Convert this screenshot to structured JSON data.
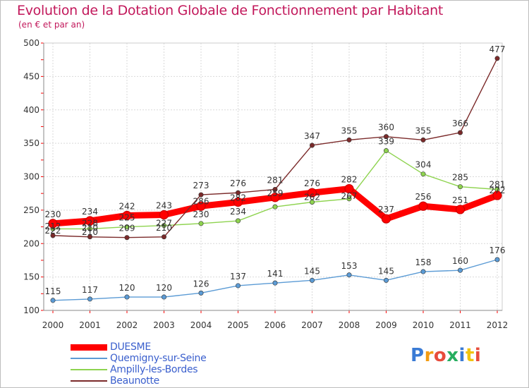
{
  "title": "Evolution de la Dotation Globale de Fonctionnement par Habitant",
  "subtitle": "(en € et par an)",
  "chart_data": {
    "type": "line",
    "x": [
      "2000",
      "2001",
      "2002",
      "2003",
      "2004",
      "2005",
      "2006",
      "2007",
      "2008",
      "2009",
      "2010",
      "2011",
      "2012"
    ],
    "ylim": [
      100,
      500
    ],
    "yticks": [
      "100",
      "150",
      "200",
      "250",
      "300",
      "350",
      "400",
      "450",
      "500"
    ],
    "grid": true,
    "series": [
      {
        "name": "DUESME",
        "color": "#ff0000",
        "values": [
          230,
          234,
          242,
          243,
          256,
          262,
          269,
          276,
          282,
          237,
          256,
          251,
          272
        ],
        "labels": [
          "230",
          "234",
          "242",
          "243",
          "",
          "",
          "",
          "276",
          "282",
          "237",
          "256",
          "251",
          ""
        ]
      },
      {
        "name": "Quemigny-sur-Seine",
        "color": "#5b9bd5",
        "values": [
          115,
          117,
          120,
          120,
          126,
          137,
          141,
          145,
          153,
          145,
          158,
          160,
          176
        ],
        "labels": [
          "115",
          "117",
          "120",
          "120",
          "126",
          "137",
          "141",
          "145",
          "153",
          "145",
          "158",
          "160",
          "176"
        ]
      },
      {
        "name": "Ampilly-les-Bordes",
        "color": "#8ed34f",
        "values": [
          222,
          222,
          225,
          227,
          230,
          234,
          255,
          262,
          267,
          339,
          304,
          285,
          281
        ],
        "labels": [
          "",
          "",
          "225",
          "",
          "230",
          "234",
          "",
          "",
          "",
          "339",
          "304",
          "285",
          ""
        ]
      },
      {
        "name": "Beaunotte",
        "color": "#7b2a2a",
        "values": [
          212,
          210,
          209,
          210,
          273,
          276,
          281,
          347,
          355,
          360,
          355,
          366,
          477
        ],
        "labels": [
          "212",
          "210",
          "209",
          "210",
          "273",
          "276",
          "281",
          "347",
          "355",
          "360",
          "355",
          "366",
          "477"
        ]
      }
    ],
    "extra_labels": [
      "286",
      "282",
      "259",
      "262",
      "267",
      "222",
      "210",
      "228",
      "227",
      "281",
      "272"
    ]
  },
  "logo": {
    "letters": [
      "P",
      "r",
      "o",
      "x",
      "i",
      "t",
      "i"
    ]
  }
}
